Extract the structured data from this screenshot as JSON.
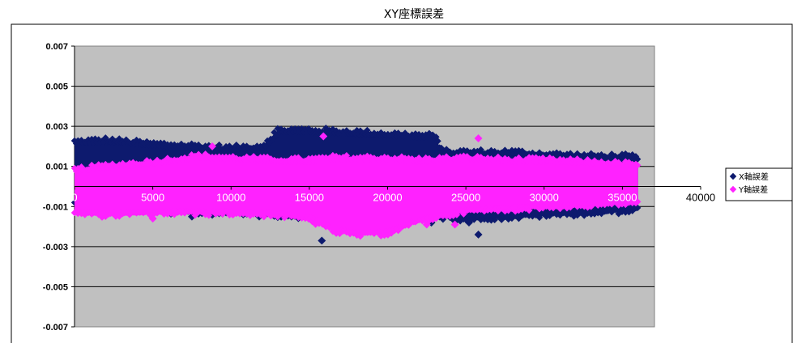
{
  "chart_data": {
    "type": "scatter",
    "title": "XY座標誤差",
    "xlabel": "",
    "ylabel": "",
    "xlim": [
      0,
      40000
    ],
    "ylim": [
      -0.007,
      0.007
    ],
    "x_ticks": [
      0,
      5000,
      10000,
      15000,
      20000,
      25000,
      30000,
      35000,
      40000
    ],
    "y_ticks": [
      0.007,
      0.005,
      0.003,
      0.001,
      -0.001,
      -0.003,
      -0.005,
      -0.007
    ],
    "y_tick_labels": [
      "0.007",
      "0.005",
      "0.003",
      "0.001",
      "-0.001",
      "-0.003",
      "-0.005",
      "-0.007"
    ],
    "x_tick_labels": [
      "0",
      "5000",
      "10000",
      "15000",
      "20000",
      "25000",
      "30000",
      "35000",
      "40000"
    ],
    "grid": true,
    "legend_position": "right",
    "series": [
      {
        "name": "X軸誤差",
        "color": "#0d1a6e",
        "marker": "diamond",
        "envelope": {
          "x": [
            0,
            2000,
            5000,
            8000,
            10000,
            12000,
            13000,
            15000,
            18000,
            20000,
            23000,
            23500,
            25000,
            28000,
            30000,
            33000,
            35000,
            36000
          ],
          "upper": [
            0.0022,
            0.0023,
            0.0021,
            0.002,
            0.0019,
            0.002,
            0.0028,
            0.0028,
            0.0027,
            0.0026,
            0.0025,
            0.0017,
            0.0017,
            0.0017,
            0.0016,
            0.0015,
            0.0015,
            0.0014
          ],
          "lower": [
            -0.0008,
            -0.001,
            -0.0012,
            -0.0013,
            -0.0013,
            -0.0013,
            -0.0014,
            -0.0015,
            -0.0015,
            -0.0015,
            -0.0015,
            -0.0015,
            -0.0016,
            -0.0015,
            -0.0014,
            -0.0013,
            -0.0012,
            -0.0011
          ]
        },
        "outliers": [
          [
            7500,
            -0.0015
          ],
          [
            11800,
            -0.0015
          ],
          [
            15800,
            -0.0027
          ],
          [
            22800,
            -0.0018
          ],
          [
            25800,
            -0.0024
          ],
          [
            25200,
            -0.0018
          ],
          [
            34000,
            -0.0012
          ]
        ]
      },
      {
        "name": "Y軸誤差",
        "color": "#ff22ff",
        "marker": "diamond",
        "envelope": {
          "x": [
            0,
            2000,
            5000,
            8000,
            10000,
            13000,
            15000,
            16500,
            18000,
            20000,
            22000,
            25000,
            28000,
            30000,
            33000,
            35000,
            36000
          ],
          "upper": [
            0.0008,
            0.001,
            0.0012,
            0.0015,
            0.0014,
            0.0013,
            0.0013,
            0.0014,
            0.0014,
            0.0014,
            0.0013,
            0.0014,
            0.0013,
            0.0013,
            0.0012,
            0.0011,
            0.0011
          ],
          "lower": [
            -0.0013,
            -0.0014,
            -0.0013,
            -0.0013,
            -0.0013,
            -0.0014,
            -0.0016,
            -0.0022,
            -0.0024,
            -0.0023,
            -0.0017,
            -0.0012,
            -0.0011,
            -0.001,
            -0.0009,
            -0.0008,
            -0.0008
          ]
        },
        "outliers": [
          [
            8800,
            0.002
          ],
          [
            15900,
            0.0025
          ],
          [
            25800,
            0.0024
          ],
          [
            22500,
            -0.0019
          ],
          [
            24300,
            -0.0019
          ],
          [
            5000,
            -0.0016
          ]
        ]
      }
    ]
  }
}
